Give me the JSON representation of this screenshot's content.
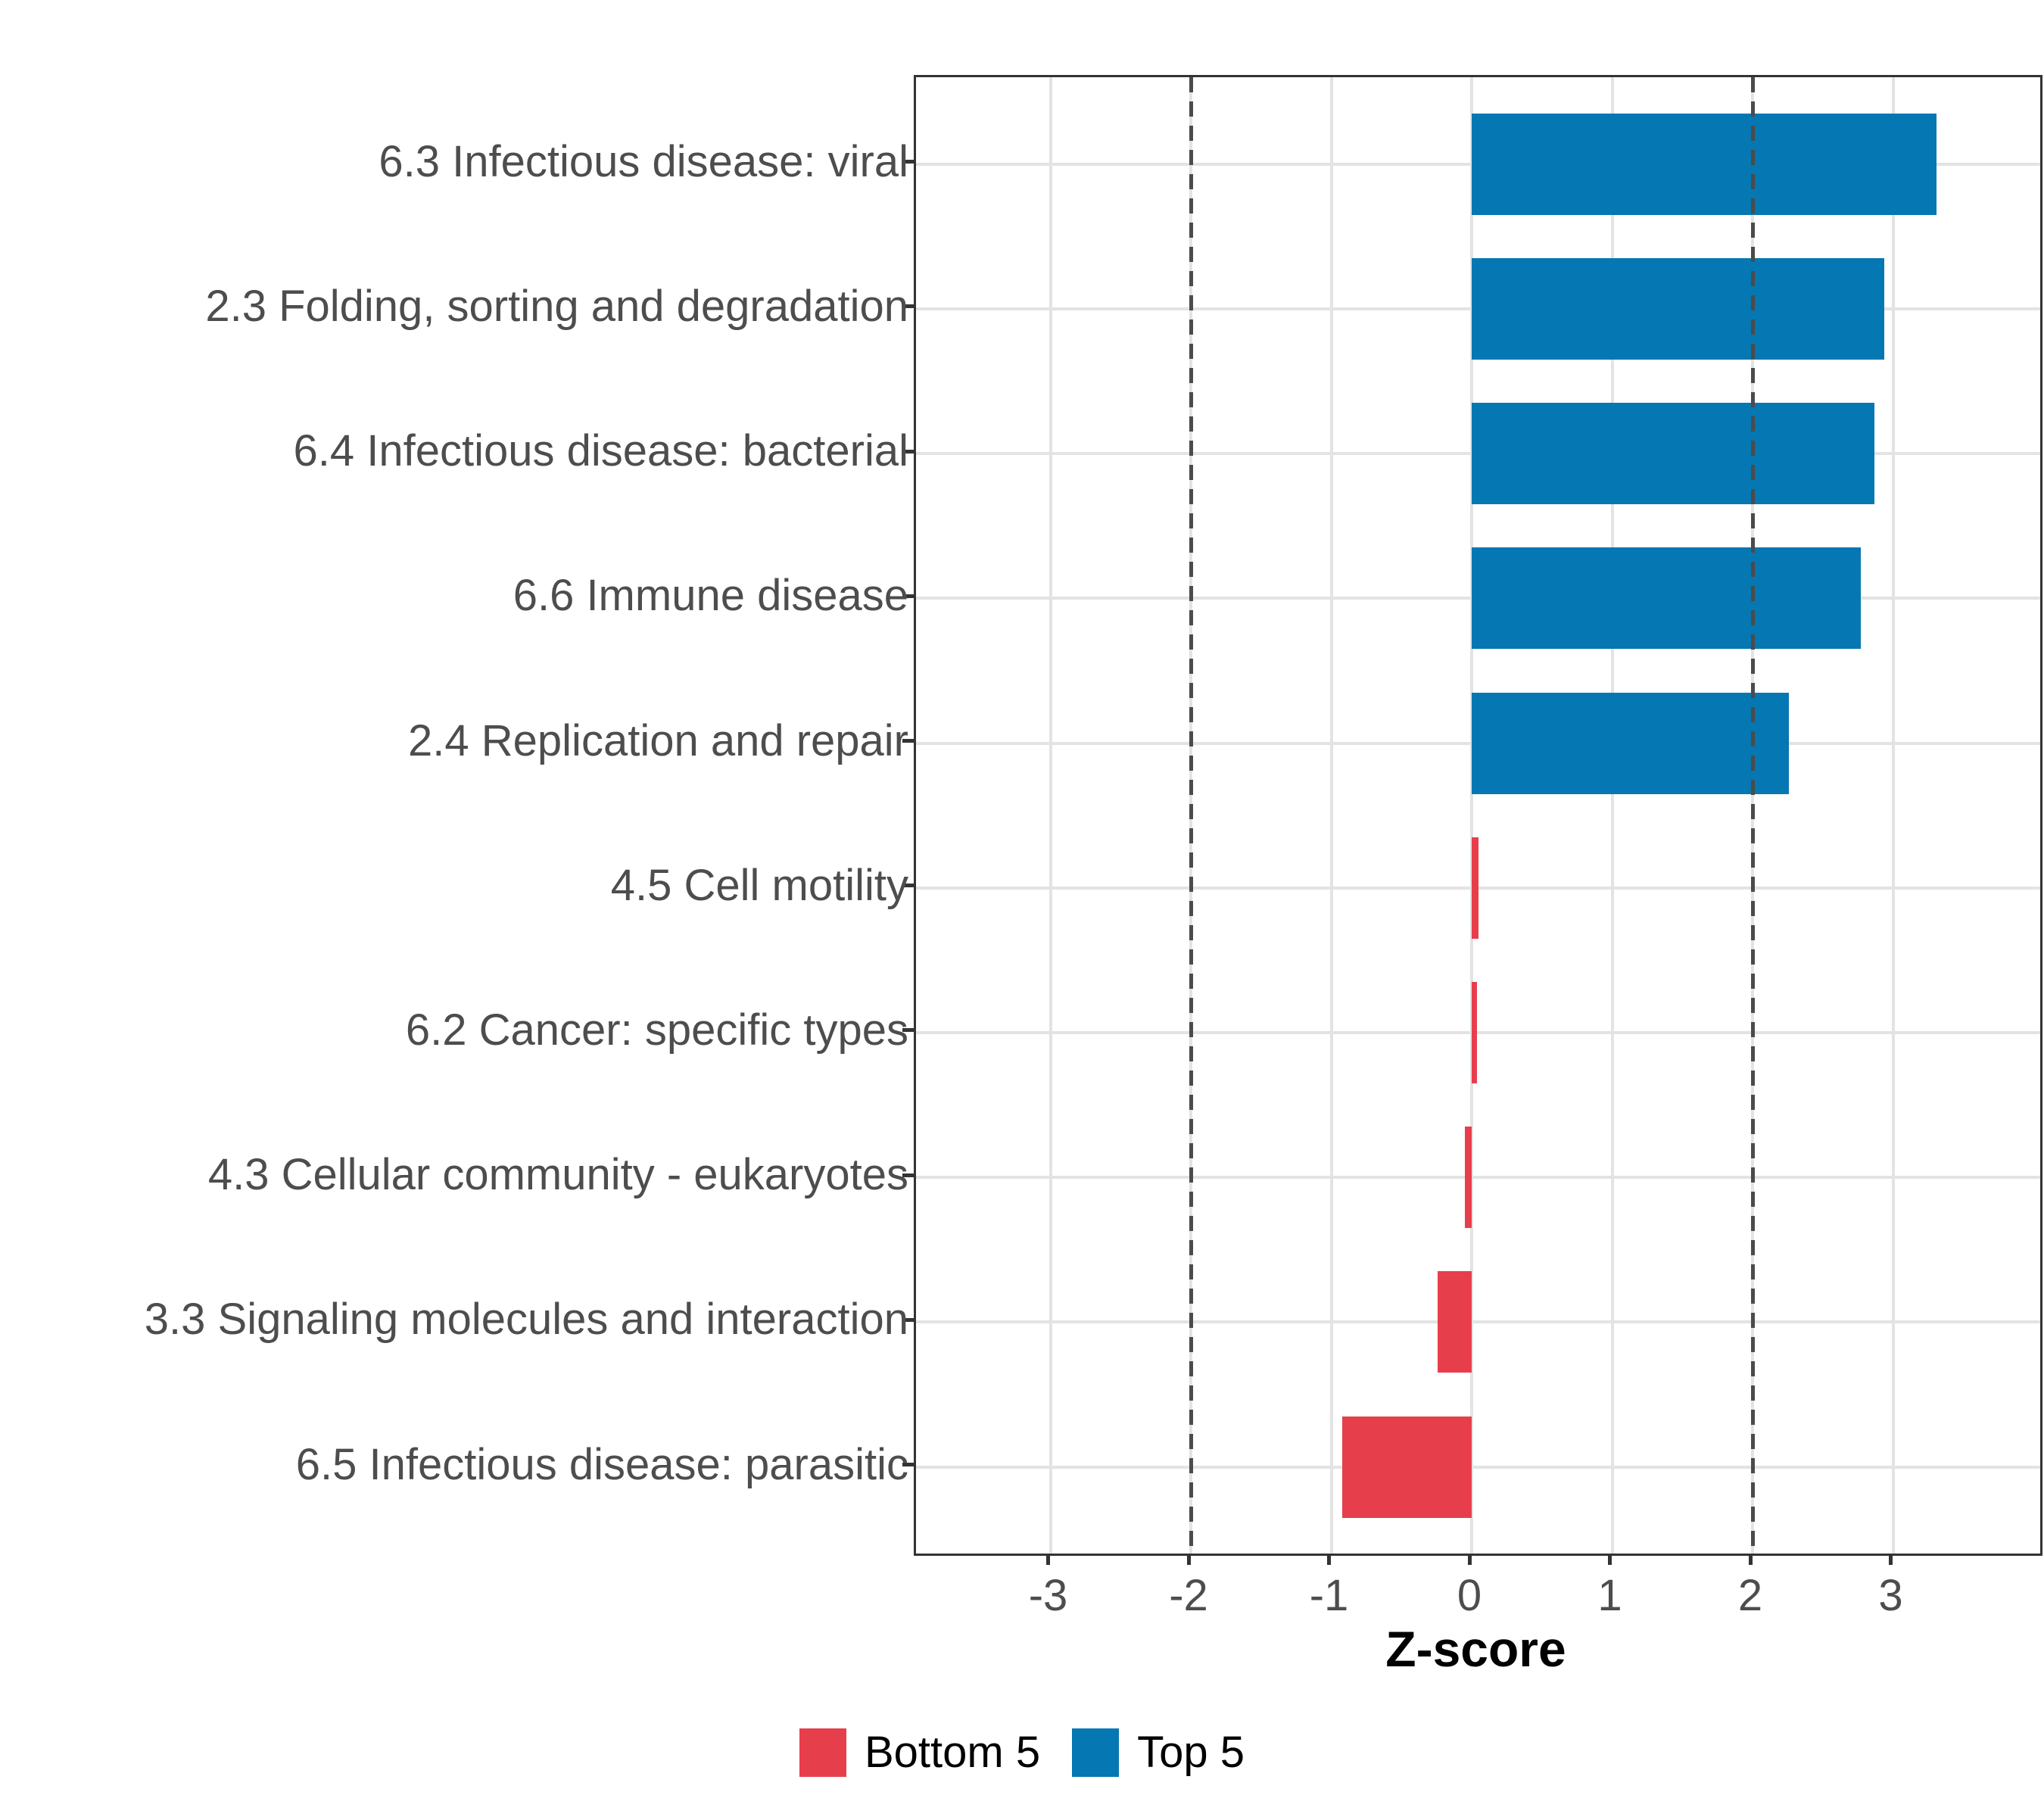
{
  "chart_data": {
    "type": "bar",
    "orientation": "horizontal",
    "title": "",
    "xlabel": "Z-score",
    "categories": [
      "6.3 Infectious disease: viral",
      "2.3 Folding, sorting and degradation",
      "6.4 Infectious disease: bacterial",
      "6.6 Immune disease",
      "2.4 Replication and repair",
      "4.5 Cell motility",
      "6.2 Cancer: specific types",
      "4.3 Cellular community - eukaryotes",
      "3.3 Signaling molecules and interaction",
      "6.5 Infectious disease: parasitic"
    ],
    "values": [
      3.31,
      2.94,
      2.87,
      2.77,
      2.26,
      0.05,
      0.04,
      -0.05,
      -0.24,
      -0.92
    ],
    "groups": [
      "Top 5",
      "Top 5",
      "Top 5",
      "Top 5",
      "Top 5",
      "Bottom 5",
      "Bottom 5",
      "Bottom 5",
      "Bottom 5",
      "Bottom 5"
    ],
    "x_ticks": [
      -3,
      -2,
      -1,
      0,
      1,
      2,
      3
    ],
    "xlim": [
      -3.96,
      4.05
    ],
    "reference_lines": [
      -2,
      2
    ],
    "grid": true,
    "legend_position": "bottom",
    "legend": [
      {
        "label": "Bottom 5",
        "color": "#E73E4C"
      },
      {
        "label": "Top 5",
        "color": "#0577B2"
      }
    ],
    "colors": {
      "bottom5_red": "#E73E4C",
      "top5_blue": "#0577B2",
      "gridline": "#e3e3e3",
      "reference_line": "#4b4b4b",
      "axis_text": "#4d4d4d",
      "panel_border": "#333333"
    }
  }
}
